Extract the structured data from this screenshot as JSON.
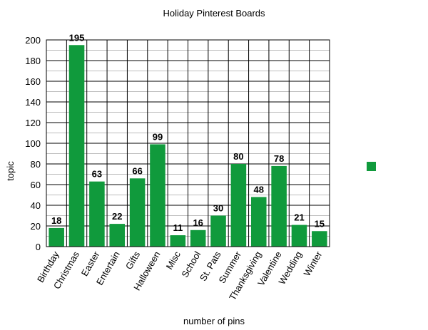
{
  "chart_data": {
    "type": "bar",
    "title": "Holiday Pinterest Boards",
    "xlabel": "number of pins",
    "ylabel": "topic",
    "categories": [
      "Birthday",
      "Christmas",
      "Easter",
      "Entertain",
      "Gifts",
      "Halloween",
      "Misc",
      "School",
      "St. Pats",
      "Summer",
      "Thanksgiving",
      "Valentine",
      "Wedding",
      "Winter"
    ],
    "values": [
      18,
      195,
      63,
      22,
      66,
      99,
      11,
      16,
      30,
      80,
      48,
      78,
      21,
      15
    ],
    "ylim": [
      0,
      200
    ],
    "yticks": [
      0,
      20,
      40,
      60,
      80,
      100,
      120,
      140,
      160,
      180,
      200
    ],
    "grid": true,
    "legend": "right",
    "bar_color": "#109a3c"
  }
}
